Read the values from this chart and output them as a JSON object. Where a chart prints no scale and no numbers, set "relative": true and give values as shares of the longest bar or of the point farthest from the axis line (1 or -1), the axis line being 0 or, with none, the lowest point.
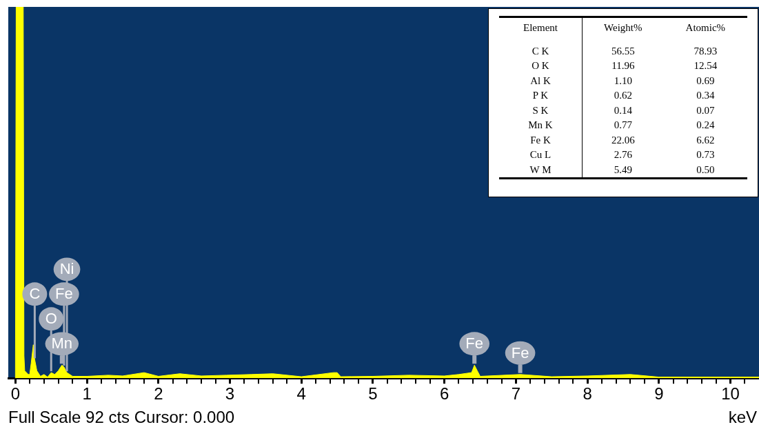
{
  "chart_data": [
    {
      "type": "area",
      "relative": true,
      "xlabel": "keV",
      "grid": false,
      "legend": false,
      "marker": "none",
      "x": [
        0,
        0.01,
        0.11,
        0.12,
        0.13,
        0.18,
        0.2,
        0.22,
        0.25,
        0.27,
        0.3,
        0.35,
        0.4,
        0.45,
        0.5,
        0.55,
        0.6,
        0.65,
        0.68,
        0.72,
        0.8,
        1.0,
        1.3,
        1.5,
        1.8,
        2.0,
        2.3,
        2.6,
        2.95,
        3.3,
        3.6,
        4.0,
        4.45,
        4.5,
        4.55,
        5.0,
        5.5,
        6.0,
        6.2,
        6.38,
        6.42,
        6.46,
        6.5,
        7.06,
        7.5,
        8.0,
        8.6,
        9.0,
        10.0,
        10.4
      ],
      "series": [
        {
          "color": "#ffff00",
          "values": [
            0,
            1,
            1,
            0.06,
            0.02,
            0.01,
            0.01,
            0.04,
            0.09,
            0.05,
            0.02,
            0.005,
            0.01,
            0.003,
            0.015,
            0.01,
            0.02,
            0.035,
            0.03,
            0.015,
            0.005,
            0.005,
            0.008,
            0.006,
            0.015,
            0.005,
            0.012,
            0.006,
            0.008,
            0.01,
            0.012,
            0.004,
            0.015,
            0.015,
            0.004,
            0.005,
            0.008,
            0.006,
            0.01,
            0.015,
            0.035,
            0.02,
            0.005,
            0.01,
            0.004,
            0.006,
            0.01,
            0.003,
            0.003,
            0.003
          ]
        }
      ],
      "xlim": [
        -0.1,
        10.4
      ],
      "xticks": [
        0,
        {
          "value": 0.2,
          "label": null
        },
        {
          "value": 0.4,
          "label": null
        },
        {
          "value": 0.6,
          "label": null
        },
        {
          "value": 0.8,
          "label": null
        },
        1,
        {
          "value": 1.2,
          "label": null
        },
        {
          "value": 1.4,
          "label": null
        },
        {
          "value": 1.6,
          "label": null
        },
        {
          "value": 1.8,
          "label": null
        },
        2,
        {
          "value": 2.2,
          "label": null
        },
        {
          "value": 2.4,
          "label": null
        },
        {
          "value": 2.6,
          "label": null
        },
        {
          "value": 2.8,
          "label": null
        },
        3,
        {
          "value": 3.2,
          "label": null
        },
        {
          "value": 3.4,
          "label": null
        },
        {
          "value": 3.6,
          "label": null
        },
        {
          "value": 3.8,
          "label": null
        },
        4,
        {
          "value": 4.2,
          "label": null
        },
        {
          "value": 4.4,
          "label": null
        },
        {
          "value": 4.6,
          "label": null
        },
        {
          "value": 4.8,
          "label": null
        },
        5,
        {
          "value": 5.2,
          "label": null
        },
        {
          "value": 5.4,
          "label": null
        },
        {
          "value": 5.6,
          "label": null
        },
        {
          "value": 5.8,
          "label": null
        },
        6,
        {
          "value": 6.2,
          "label": null
        },
        {
          "value": 6.4,
          "label": null
        },
        {
          "value": 6.6,
          "label": null
        },
        {
          "value": 6.8,
          "label": null
        },
        7,
        {
          "value": 7.2,
          "label": null
        },
        {
          "value": 7.4,
          "label": null
        },
        {
          "value": 7.6,
          "label": null
        },
        {
          "value": 7.8,
          "label": null
        },
        8,
        {
          "value": 8.2,
          "label": null
        },
        {
          "value": 8.4,
          "label": null
        },
        {
          "value": 8.6,
          "label": null
        },
        {
          "value": 8.8,
          "label": null
        },
        9,
        {
          "value": 9.2,
          "label": null
        },
        {
          "value": 9.4,
          "label": null
        },
        {
          "value": 9.6,
          "label": null
        },
        {
          "value": 9.8,
          "label": null
        },
        10,
        {
          "value": 10.2,
          "label": null
        }
      ],
      "annotations": [
        {
          "text": "C",
          "x": 0.27,
          "y": 0.05
        },
        {
          "text": "Ni",
          "x": 0.72,
          "y": 0.015
        },
        {
          "text": "Fe",
          "x": 0.68,
          "y": 0.03
        },
        {
          "text": "O",
          "x": 0.5,
          "y": 0.015
        },
        {
          "text": "Mn",
          "x": 0.65,
          "y": 0.035
        },
        {
          "text": "Fe",
          "x": 6.42,
          "y": 0.035
        },
        {
          "text": "Fe",
          "x": 7.06,
          "y": 0.01
        },
        "Full Scale 92 cts Cursor: 0.000"
      ]
    },
    {
      "type": "other",
      "xlabel": "Element",
      "categories": [
        "C K",
        "O K",
        "Al K",
        "P K",
        "S K",
        "Mn K",
        "Fe K",
        "Cu L",
        "W M"
      ],
      "series": [
        {
          "name": "Weight%",
          "values": [
            56.55,
            11.96,
            1.1,
            0.62,
            0.14,
            0.77,
            22.06,
            2.76,
            5.49
          ],
          "value_labels": [
            "56.55",
            "11.96",
            "1.10",
            "0.62",
            "0.14",
            "0.77",
            "22.06",
            "2.76",
            "5.49"
          ]
        },
        {
          "name": "Atomic%",
          "values": [
            78.93,
            12.54,
            0.69,
            0.34,
            0.07,
            0.24,
            6.62,
            0.73,
            0.5
          ],
          "value_labels": [
            "78.93",
            "12.54",
            "0.69",
            "0.34",
            "0.07",
            "0.24",
            "6.62",
            "0.73",
            "0.50"
          ]
        }
      ]
    }
  ]
}
